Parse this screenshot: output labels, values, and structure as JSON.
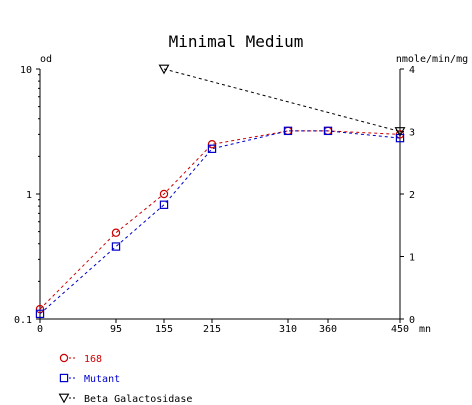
{
  "chart_data": {
    "type": "line",
    "title": "Minimal Medium",
    "y_left_label": "od",
    "y_right_label": "nmole/min/mg",
    "x_unit_label": "mn",
    "x_ticks": [
      0,
      95,
      155,
      215,
      310,
      360,
      450
    ],
    "x_range": [
      0,
      450
    ],
    "y_left_scale": "log",
    "y_left_range": [
      0.1,
      10
    ],
    "y_left_ticks": [
      "10",
      "1",
      "0.1"
    ],
    "y_right_range": [
      0,
      4
    ],
    "y_right_ticks": [
      "4",
      "3",
      "2",
      "1",
      "0"
    ],
    "grid": false,
    "legend_position": "bottom-left",
    "series": [
      {
        "name": "168",
        "axis": "left",
        "marker": "circle",
        "color": "#cc0000",
        "x": [
          0,
          95,
          155,
          215,
          310,
          360,
          450
        ],
        "y": [
          0.12,
          0.49,
          1.0,
          2.5,
          3.2,
          3.2,
          3.0
        ]
      },
      {
        "name": "Mutant",
        "axis": "left",
        "marker": "square",
        "color": "#0000cc",
        "x": [
          0,
          95,
          155,
          215,
          310,
          360,
          450
        ],
        "y": [
          0.11,
          0.38,
          0.82,
          2.3,
          3.2,
          3.2,
          2.8
        ]
      },
      {
        "name": "Beta Galactosidase",
        "axis": "right",
        "marker": "triangle-down",
        "color": "#000000",
        "x": [
          155,
          450
        ],
        "y": [
          4.0,
          3.0
        ]
      }
    ]
  }
}
